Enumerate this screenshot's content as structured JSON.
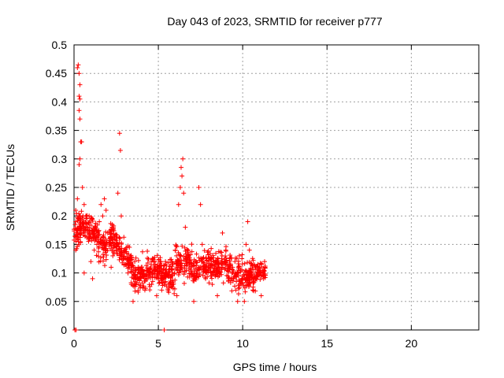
{
  "chart_data": {
    "type": "scatter",
    "title": "Day 043 of 2023, SRMTID for receiver p777",
    "xlabel": "GPS time / hours",
    "ylabel": "SRMTID / TECUs",
    "xlim": [
      0,
      24
    ],
    "ylim": [
      0,
      0.5
    ],
    "grid": true,
    "marker": "+",
    "x_ticks": [
      0,
      5,
      10,
      15,
      20
    ],
    "x_tick_labels": [
      "0",
      "5",
      "10",
      "15",
      "20"
    ],
    "y_ticks": [
      0,
      0.05,
      0.1,
      0.15,
      0.2,
      0.25,
      0.3,
      0.35,
      0.4,
      0.45,
      0.5
    ],
    "y_tick_labels": [
      "0",
      "0.05",
      "0.1",
      "0.15",
      "0.2",
      "0.25",
      "0.3",
      "0.35",
      "0.4",
      "0.45",
      "0.5"
    ],
    "colors": {
      "series": "#ff0000",
      "grid": "#a0a0a0",
      "axis": "#000000"
    },
    "series": [
      {
        "name": "SRMTID",
        "points": [
          [
            0.05,
            0.0
          ],
          [
            0.12,
            0.0
          ],
          [
            5.35,
            0.0
          ],
          [
            0.2,
            0.46
          ],
          [
            0.25,
            0.465
          ],
          [
            0.3,
            0.45
          ],
          [
            0.35,
            0.43
          ],
          [
            0.3,
            0.41
          ],
          [
            0.35,
            0.405
          ],
          [
            0.3,
            0.385
          ],
          [
            0.35,
            0.37
          ],
          [
            0.4,
            0.33
          ],
          [
            0.45,
            0.33
          ],
          [
            0.35,
            0.3
          ],
          [
            0.3,
            0.29
          ],
          [
            2.7,
            0.345
          ],
          [
            2.75,
            0.315
          ],
          [
            6.45,
            0.3
          ],
          [
            6.35,
            0.285
          ],
          [
            6.4,
            0.27
          ],
          [
            0.1,
            0.21
          ],
          [
            0.1,
            0.19
          ],
          [
            0.15,
            0.17
          ],
          [
            0.2,
            0.23
          ],
          [
            0.1,
            0.14
          ],
          [
            0.2,
            0.16
          ],
          [
            0.5,
            0.25
          ],
          [
            0.6,
            0.22
          ],
          [
            0.7,
            0.2
          ],
          [
            0.8,
            0.18
          ],
          [
            0.9,
            0.16
          ],
          [
            1.0,
            0.12
          ],
          [
            1.2,
            0.14
          ],
          [
            1.4,
            0.17
          ],
          [
            1.5,
            0.19
          ],
          [
            1.6,
            0.22
          ],
          [
            1.7,
            0.2
          ],
          [
            1.8,
            0.23
          ],
          [
            1.9,
            0.21
          ],
          [
            2.0,
            0.17
          ],
          [
            2.1,
            0.15
          ],
          [
            2.3,
            0.13
          ],
          [
            2.5,
            0.16
          ],
          [
            2.6,
            0.24
          ],
          [
            2.8,
            0.2
          ],
          [
            3.0,
            0.14
          ],
          [
            3.2,
            0.1
          ],
          [
            3.4,
            0.08
          ],
          [
            3.6,
            0.12
          ],
          [
            3.8,
            0.09
          ],
          [
            4.0,
            0.11
          ],
          [
            4.2,
            0.07
          ],
          [
            4.4,
            0.1
          ],
          [
            4.6,
            0.08
          ],
          [
            4.8,
            0.12
          ],
          [
            5.0,
            0.09
          ],
          [
            5.2,
            0.07
          ],
          [
            5.4,
            0.1
          ],
          [
            5.6,
            0.08
          ],
          [
            5.8,
            0.12
          ],
          [
            6.0,
            0.14
          ],
          [
            6.2,
            0.22
          ],
          [
            6.3,
            0.25
          ],
          [
            6.5,
            0.24
          ],
          [
            6.6,
            0.18
          ],
          [
            6.8,
            0.13
          ],
          [
            7.0,
            0.1
          ],
          [
            7.2,
            0.12
          ],
          [
            7.4,
            0.25
          ],
          [
            7.5,
            0.22
          ],
          [
            7.6,
            0.15
          ],
          [
            7.8,
            0.09
          ],
          [
            8.0,
            0.11
          ],
          [
            8.2,
            0.08
          ],
          [
            8.4,
            0.12
          ],
          [
            8.6,
            0.1
          ],
          [
            8.8,
            0.17
          ],
          [
            9.0,
            0.14
          ],
          [
            9.2,
            0.09
          ],
          [
            9.4,
            0.11
          ],
          [
            9.6,
            0.07
          ],
          [
            9.8,
            0.13
          ],
          [
            10.0,
            0.09
          ],
          [
            10.1,
            0.05
          ],
          [
            10.2,
            0.15
          ],
          [
            10.3,
            0.19
          ],
          [
            10.4,
            0.14
          ],
          [
            10.5,
            0.1
          ],
          [
            10.6,
            0.07
          ],
          [
            10.8,
            0.09
          ],
          [
            11.0,
            0.11
          ],
          [
            11.2,
            0.1
          ],
          [
            11.3,
            0.12
          ],
          [
            0.6,
            0.1
          ],
          [
            1.1,
            0.09
          ],
          [
            2.2,
            0.11
          ],
          [
            3.5,
            0.05
          ],
          [
            4.9,
            0.06
          ],
          [
            6.1,
            0.06
          ],
          [
            7.1,
            0.05
          ],
          [
            8.5,
            0.06
          ],
          [
            9.7,
            0.05
          ],
          [
            11.1,
            0.06
          ]
        ]
      }
    ]
  }
}
